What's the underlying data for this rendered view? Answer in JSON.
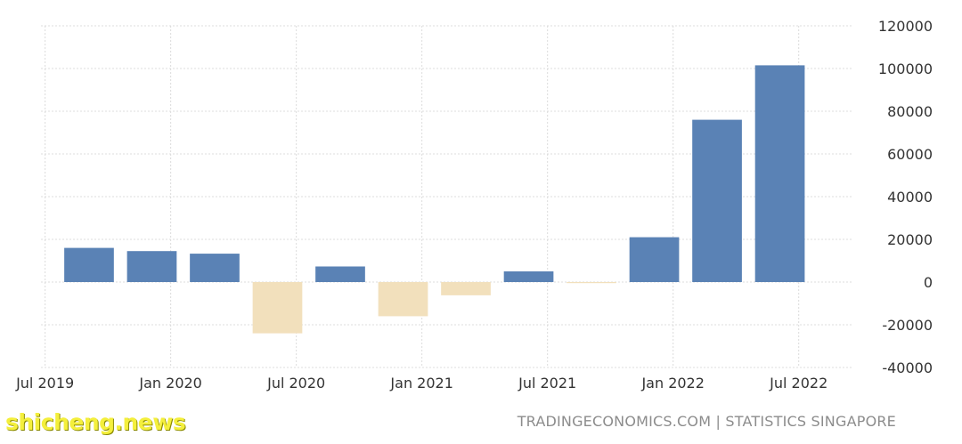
{
  "chart_data": {
    "type": "bar",
    "categories": [
      "Q3 2019",
      "Q4 2019",
      "Q1 2020",
      "Q2 2020",
      "Q3 2020",
      "Q4 2020",
      "Q1 2021",
      "Q2 2021",
      "Q3 2021",
      "Q4 2021",
      "Q1 2022",
      "Q2 2022"
    ],
    "values": [
      16000,
      14500,
      13300,
      -24000,
      7300,
      -16000,
      -6200,
      5000,
      -500,
      21000,
      76000,
      101500
    ],
    "x_tick_labels": [
      "Jul 2019",
      "Jan 2020",
      "Jul 2020",
      "Jan 2021",
      "Jul 2021",
      "Jan 2022",
      "Jul 2022"
    ],
    "y_ticks": [
      120000,
      100000,
      80000,
      60000,
      40000,
      20000,
      0,
      -20000,
      -40000
    ],
    "ylim": [
      -40000,
      120000
    ],
    "y_axis_side": "right",
    "grid": true,
    "colors": {
      "positive": "#5a82b5",
      "negative": "#f2e0bc"
    },
    "title": "",
    "xlabel": "",
    "ylabel": ""
  },
  "source": "TRADINGECONOMICS.COM  |  STATISTICS SINGAPORE",
  "watermark": "shicheng.news"
}
